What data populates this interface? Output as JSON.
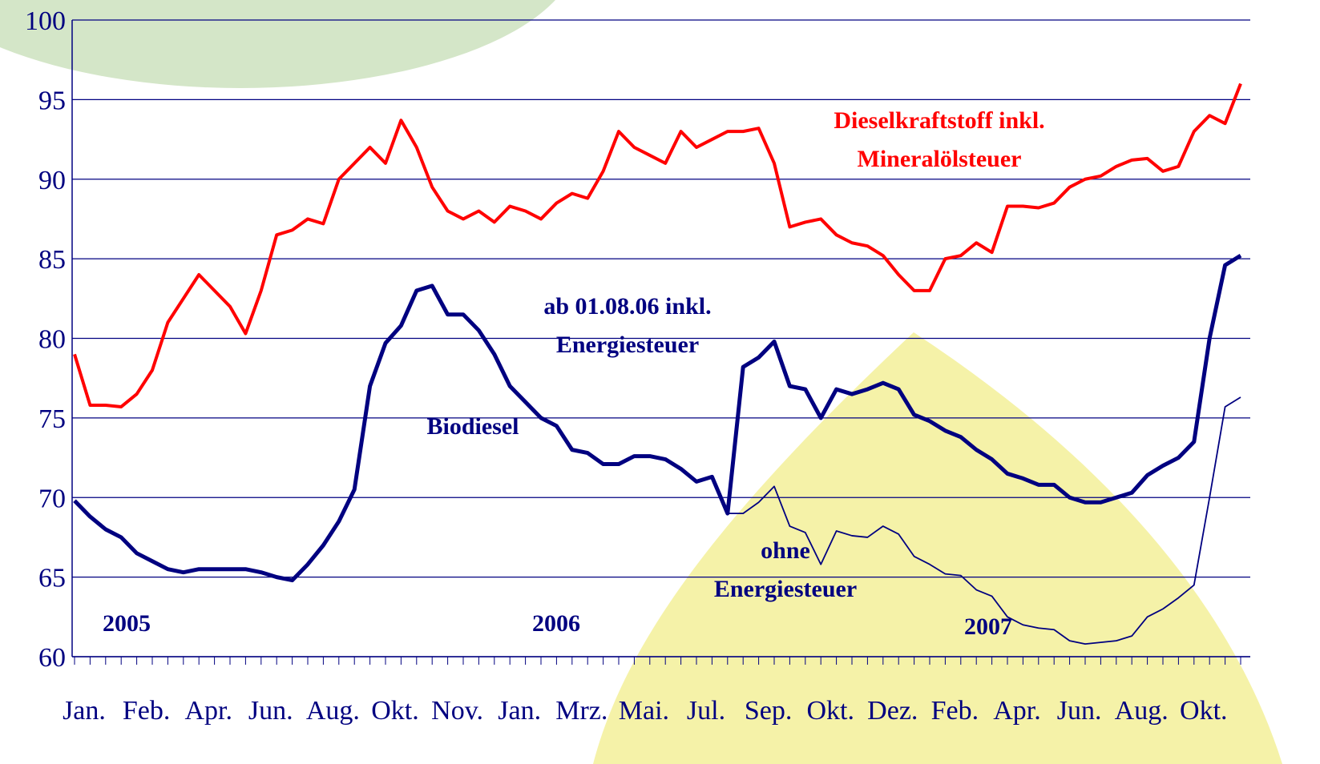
{
  "chart_data": {
    "type": "line",
    "categories": [
      "Jan.",
      null,
      null,
      null,
      "Feb.",
      null,
      null,
      null,
      "Apr.",
      null,
      null,
      null,
      "Jun.",
      null,
      null,
      null,
      "Aug.",
      null,
      null,
      null,
      "Okt.",
      null,
      null,
      null,
      "Nov.",
      null,
      null,
      null,
      "Jan.",
      null,
      null,
      null,
      "Mrz.",
      null,
      null,
      null,
      "Mai.",
      null,
      null,
      null,
      "Jul.",
      null,
      null,
      null,
      "Sep.",
      null,
      null,
      null,
      "Okt.",
      null,
      null,
      null,
      "Dez.",
      null,
      null,
      null,
      "Feb.",
      null,
      null,
      null,
      "Apr.",
      null,
      null,
      null,
      "Jun.",
      null,
      null,
      null,
      "Aug.",
      null,
      null,
      null,
      "Okt.",
      null,
      null,
      null
    ],
    "series": [
      {
        "name": "Dieselkraftstoff inkl. Mineralölsteuer",
        "color": "#ff0000",
        "width": 4,
        "values": [
          79,
          75.8,
          75.8,
          75.7,
          76.5,
          78,
          81,
          82.5,
          84,
          83,
          82,
          80.3,
          83,
          86.5,
          86.8,
          87.5,
          87.2,
          90,
          91,
          92,
          91,
          93.7,
          92,
          89.5,
          88,
          87.5,
          88,
          87.3,
          88.3,
          88,
          87.5,
          88.5,
          89.1,
          88.8,
          90.5,
          93,
          92,
          91.5,
          91,
          93,
          92,
          92.5,
          93,
          93,
          93.2,
          91,
          87,
          87.3,
          87.5,
          86.5,
          86,
          85.8,
          85.2,
          84,
          83,
          83,
          85,
          85.2,
          86,
          85.4,
          88.3,
          88.3,
          88.2,
          88.5,
          89.5,
          90,
          90.2,
          90.8,
          91.2,
          91.3,
          90.5,
          90.8,
          93,
          94,
          93.5,
          96
        ]
      },
      {
        "name": "Biodiesel",
        "color": "#000080",
        "width": 5,
        "values": [
          69.8,
          68.8,
          68,
          67.5,
          66.5,
          66,
          65.5,
          65.3,
          65.5,
          65.5,
          65.5,
          65.5,
          65.3,
          65,
          64.8,
          65.8,
          67,
          68.5,
          70.5,
          77,
          79.7,
          80.8,
          83,
          83.3,
          81.5,
          81.5,
          80.5,
          79,
          77,
          76,
          75,
          74.5,
          73,
          72.8,
          72.1,
          72.1,
          72.6,
          72.6,
          72.4,
          71.8,
          71,
          71.3,
          69,
          78.2,
          78.8,
          79.8,
          77,
          76.8,
          75,
          76.8,
          76.5,
          76.8,
          77.2,
          76.8,
          75.2,
          74.8,
          74.2,
          73.8,
          73,
          72.4,
          71.5,
          71.2,
          70.8,
          70.8,
          70,
          69.7,
          69.7,
          70,
          70.3,
          71.4,
          72,
          72.5,
          73.5,
          80,
          84.6,
          85.2
        ]
      },
      {
        "name": "ohne Energiesteuer",
        "color": "#000080",
        "width": 1.8,
        "values": [
          null,
          null,
          null,
          null,
          null,
          null,
          null,
          null,
          null,
          null,
          null,
          null,
          null,
          null,
          null,
          null,
          null,
          null,
          null,
          null,
          null,
          null,
          null,
          null,
          null,
          null,
          null,
          null,
          null,
          null,
          null,
          null,
          null,
          null,
          null,
          null,
          null,
          null,
          null,
          null,
          null,
          null,
          69,
          69,
          69.7,
          70.7,
          68.2,
          67.8,
          65.8,
          67.9,
          67.6,
          67.5,
          68.2,
          67.7,
          66.3,
          65.8,
          65.2,
          65.1,
          64.2,
          63.8,
          62.5,
          62,
          61.8,
          61.7,
          61,
          60.8,
          60.9,
          61,
          61.3,
          62.5,
          63,
          63.7,
          64.5,
          70,
          75.7,
          76.3
        ]
      }
    ],
    "annotations": [
      {
        "lines": [
          "Dieselkraftstoff inkl.",
          "Mineralölsteuer"
        ],
        "color": "#ff0000"
      },
      {
        "lines": [
          "ab 01.08.06 inkl.",
          "Energiesteuer"
        ],
        "color": "#000080"
      },
      {
        "lines": [
          "Biodiesel"
        ],
        "color": "#000080"
      },
      {
        "lines": [
          "ohne",
          "Energiesteuer"
        ],
        "color": "#000080"
      },
      {
        "lines": [
          "2005"
        ],
        "color": "#000080"
      },
      {
        "lines": [
          "2006"
        ],
        "color": "#000080"
      },
      {
        "lines": [
          "2007"
        ],
        "color": "#000080"
      }
    ],
    "ylim": [
      60,
      100
    ],
    "yticks": [
      60,
      65,
      70,
      75,
      80,
      85,
      90,
      95,
      100
    ],
    "grid": true
  }
}
